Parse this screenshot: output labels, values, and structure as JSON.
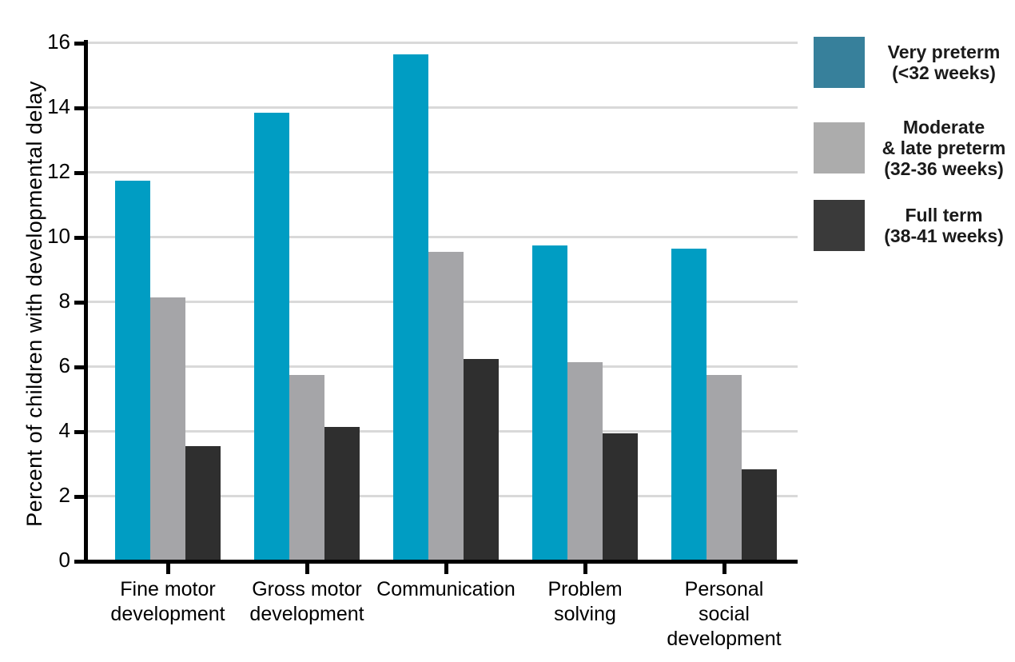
{
  "chart_data": {
    "type": "bar",
    "title": "",
    "ylabel": "Percent of children with developmental delay",
    "xlabel": "",
    "ylim": [
      0,
      16
    ],
    "yticks": [
      0,
      2,
      4,
      6,
      8,
      10,
      12,
      14,
      16
    ],
    "grid": true,
    "legend_position": "right",
    "categories": [
      "Fine motor development",
      "Gross motor development",
      "Communication",
      "Problem solving",
      "Personal social development"
    ],
    "category_label_lines": [
      [
        "Fine motor",
        "development"
      ],
      [
        "Gross motor",
        "development"
      ],
      [
        "Communication"
      ],
      [
        "Problem",
        "solving"
      ],
      [
        "Personal",
        "social",
        "development"
      ]
    ],
    "series": [
      {
        "name": "Very preterm (<32 weeks)",
        "legend_lines": [
          "Very preterm",
          "(<32 weeks)"
        ],
        "bar_color": "#009DC3",
        "legend_color": "#37809B",
        "values": [
          11.7,
          13.8,
          15.6,
          9.7,
          9.6
        ]
      },
      {
        "name": "Moderate & late preterm (32-36 weeks)",
        "legend_lines": [
          "Moderate",
          "& late preterm",
          "(32-36 weeks)"
        ],
        "bar_color": "#A5A5A8",
        "legend_color": "#ACACAC",
        "values": [
          8.1,
          5.7,
          9.5,
          6.1,
          5.7
        ]
      },
      {
        "name": "Full term (38-41 weeks)",
        "legend_lines": [
          "Full term",
          "(38-41 weeks)"
        ],
        "bar_color": "#2F2F2F",
        "legend_color": "#3A3A3A",
        "values": [
          3.5,
          4.1,
          6.2,
          3.9,
          2.8
        ]
      }
    ],
    "colors": {
      "gridline": "#D9D9D9",
      "axis": "#000000",
      "text": "#000000",
      "background": "#FFFFFF"
    }
  }
}
